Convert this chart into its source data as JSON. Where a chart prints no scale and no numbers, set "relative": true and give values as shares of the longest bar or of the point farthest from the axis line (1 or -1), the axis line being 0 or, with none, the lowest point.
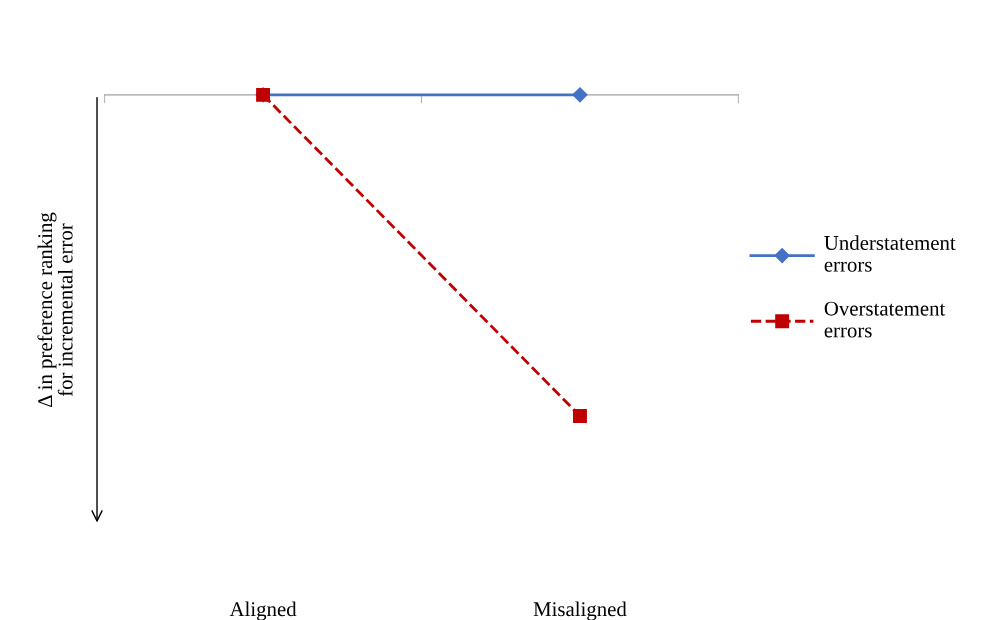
{
  "chart_data": {
    "type": "line",
    "relative": true,
    "ylabel": "Δ in preference ranking\nfor incremental error",
    "categories": [
      "Aligned",
      "Misaligned"
    ],
    "legend": "right",
    "series": [
      {
        "name": "Understatement\nerrors",
        "color": "#4472c4",
        "values": [
          0,
          0
        ],
        "marker": "diamond",
        "line_style": "solid"
      },
      {
        "name": "Overstatement\nerrors",
        "color": "#c00000",
        "values": [
          0,
          -1
        ],
        "marker": "square",
        "line_style": "dashed"
      }
    ]
  }
}
